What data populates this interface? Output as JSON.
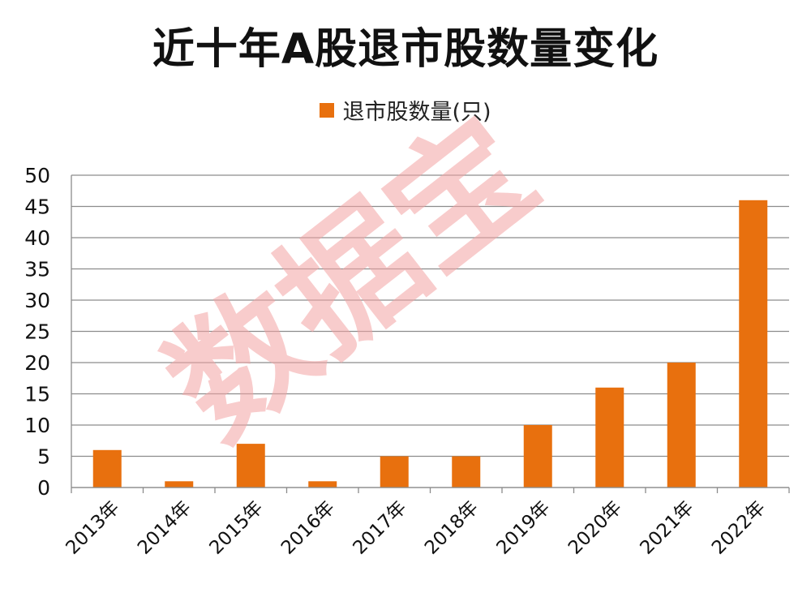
{
  "chart_data": {
    "type": "bar",
    "title": "近十年A股退市股数量变化",
    "categories": [
      "2013年",
      "2014年",
      "2015年",
      "2016年",
      "2017年",
      "2018年",
      "2019年",
      "2020年",
      "2021年",
      "2022年"
    ],
    "series": [
      {
        "name": "退市股数量(只)",
        "values": [
          6,
          1,
          7,
          1,
          5,
          5,
          10,
          16,
          20,
          46
        ]
      }
    ],
    "ylim": [
      0,
      50
    ],
    "yticks": [
      0,
      5,
      10,
      15,
      20,
      25,
      30,
      35,
      40,
      45,
      50
    ],
    "xlabel": "",
    "ylabel": "",
    "grid": true,
    "legend_position": "top-center",
    "bar_color": "#e8700e"
  },
  "watermark": "数据宝"
}
